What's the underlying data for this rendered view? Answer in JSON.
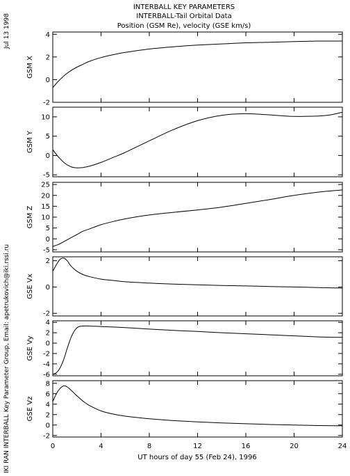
{
  "header": {
    "line1": "INTERBALL KEY PARAMETERS",
    "line2": "INTERBALL-Tail Orbital Data",
    "line3": "Position (GSM Re), velocity (GSE km/s)"
  },
  "side_label_top": "Jul 13 1998",
  "side_label_bottom": "IKI RAN INTERBALL Key Parameter Group, Email: apetrukovich@iki.rssi.ru",
  "chart_data": {
    "type": "line",
    "xlabel": "UT hours of day  55 (Feb 24), 1996",
    "xlim": [
      0,
      24
    ],
    "xticks": [
      0,
      4,
      8,
      12,
      16,
      20,
      24
    ],
    "panels": [
      {
        "ylabel": "GSM X",
        "ylim": [
          -2,
          4.2
        ],
        "yticks": [
          -2,
          0,
          2,
          4
        ],
        "series": [
          {
            "x": [
              0,
              0.5,
              1,
              1.5,
              2,
              2.5,
              3,
              4,
              5,
              6,
              8,
              10,
              12,
              14,
              16,
              18,
              20,
              22,
              24
            ],
            "y": [
              -0.7,
              -0.1,
              0.4,
              0.8,
              1.1,
              1.35,
              1.6,
              1.95,
              2.2,
              2.4,
              2.7,
              2.9,
              3.05,
              3.15,
              3.25,
              3.3,
              3.35,
              3.4,
              3.4
            ]
          }
        ]
      },
      {
        "ylabel": "GSM Y",
        "ylim": [
          -5.5,
          12.5
        ],
        "yticks": [
          -5,
          0,
          5,
          10
        ],
        "series": [
          {
            "x": [
              0,
              0.5,
              1,
              1.5,
              2,
              2.5,
              3,
              4,
              5,
              6,
              8,
              10,
              12,
              14,
              16,
              18,
              20,
              22,
              23,
              24
            ],
            "y": [
              1.5,
              -0.5,
              -2,
              -2.9,
              -3.2,
              -3.1,
              -2.8,
              -1.8,
              -0.5,
              0.8,
              3.8,
              6.7,
              9,
              10.4,
              10.8,
              10.5,
              10.1,
              10.2,
              10.5,
              11.2
            ]
          }
        ]
      },
      {
        "ylabel": "GSM Z",
        "ylim": [
          -6,
          26
        ],
        "yticks": [
          -5,
          0,
          5,
          10,
          15,
          20,
          25
        ],
        "series": [
          {
            "x": [
              0,
              0.5,
              1,
              1.5,
              2,
              2.5,
              3,
              4,
              5,
              6,
              8,
              10,
              12,
              14,
              16,
              18,
              20,
              22,
              24
            ],
            "y": [
              -3.5,
              -2.5,
              -1,
              0.5,
              2,
              3.5,
              4.5,
              6.5,
              8,
              9.2,
              11,
              12.2,
              13.3,
              14.6,
              16.3,
              18.1,
              20,
              21.5,
              22.5
            ]
          }
        ]
      },
      {
        "ylabel": "GSE Vx",
        "ylim": [
          -2.2,
          2.3
        ],
        "yticks": [
          -2,
          0,
          2
        ],
        "series": [
          {
            "x": [
              0,
              0.3,
              0.6,
              0.9,
              1.2,
              1.5,
              2,
              2.5,
              3,
              4,
              5,
              6,
              8,
              10,
              12,
              14,
              16,
              18,
              20,
              22,
              24
            ],
            "y": [
              1.2,
              1.7,
              2.1,
              2.2,
              2,
              1.6,
              1.2,
              0.95,
              0.8,
              0.6,
              0.5,
              0.4,
              0.3,
              0.22,
              0.17,
              0.12,
              0.08,
              0.04,
              0,
              -0.04,
              -0.08
            ]
          }
        ]
      },
      {
        "ylabel": "GSE Vy",
        "ylim": [
          -6.3,
          4.3
        ],
        "yticks": [
          -6,
          -4,
          -2,
          0,
          2,
          4
        ],
        "series": [
          {
            "x": [
              0,
              0.3,
              0.6,
              0.9,
              1.2,
              1.5,
              1.8,
              2.1,
              2.5,
              3,
              4,
              6,
              8,
              10,
              12,
              14,
              16,
              18,
              20,
              22,
              24
            ],
            "y": [
              -6,
              -5.7,
              -4.8,
              -3.2,
              -1,
              1,
              2.4,
              3.1,
              3.3,
              3.3,
              3.2,
              3,
              2.7,
              2.45,
              2.25,
              2,
              1.8,
              1.6,
              1.4,
              1.2,
              1.1
            ]
          }
        ]
      },
      {
        "ylabel": "GSE Vz",
        "ylim": [
          -2.3,
          8.5
        ],
        "yticks": [
          -2,
          0,
          2,
          4,
          6,
          8
        ],
        "series": [
          {
            "x": [
              0,
              0.3,
              0.6,
              0.9,
              1.2,
              1.5,
              2,
              2.5,
              3,
              4,
              5,
              6,
              8,
              10,
              12,
              14,
              16,
              18,
              20,
              22,
              24
            ],
            "y": [
              4.5,
              6,
              7,
              7.5,
              7.3,
              6.7,
              5.6,
              4.6,
              3.8,
              2.7,
              2.1,
              1.7,
              1.2,
              0.85,
              0.6,
              0.4,
              0.25,
              0.1,
              0,
              -0.1,
              -0.15
            ]
          }
        ]
      }
    ]
  }
}
